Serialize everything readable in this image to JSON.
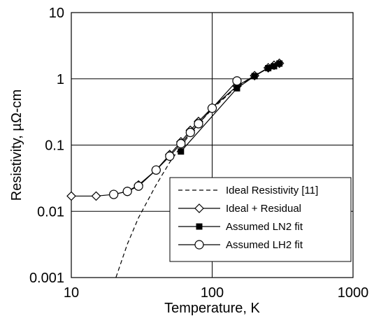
{
  "chart_data": {
    "type": "line",
    "xlabel": "Temperature, K",
    "ylabel": "Resistivity, µΩ-cm",
    "x_scale": "log",
    "y_scale": "log",
    "xlim": [
      10,
      1000
    ],
    "ylim": [
      0.001,
      10
    ],
    "x_ticks": [
      "10",
      "100",
      "1000"
    ],
    "y_ticks": [
      "0.001",
      "0.01",
      "0.1",
      "1",
      "10"
    ],
    "grid": true,
    "legend_position": "bottom-right",
    "series": [
      {
        "name": "Ideal Resistivity [11]",
        "style": "dashed",
        "marker": "none",
        "x": [
          20,
          25,
          30,
          40,
          50,
          60,
          70,
          80,
          100,
          150,
          200,
          250,
          300
        ],
        "y": [
          0.0008,
          0.0032,
          0.008,
          0.025,
          0.055,
          0.095,
          0.15,
          0.21,
          0.35,
          0.76,
          1.1,
          1.45,
          1.7
        ]
      },
      {
        "name": "Ideal + Residual",
        "style": "solid",
        "marker": "diamond",
        "x": [
          10,
          15,
          20,
          25,
          30,
          40,
          50,
          60,
          70,
          80,
          100,
          150,
          200,
          250,
          275,
          300
        ],
        "y": [
          0.017,
          0.017,
          0.018,
          0.02,
          0.025,
          0.042,
          0.072,
          0.112,
          0.167,
          0.227,
          0.367,
          0.777,
          1.117,
          1.467,
          1.6,
          1.717
        ]
      },
      {
        "name": "Assumed LN2 fit",
        "style": "solid",
        "marker": "square",
        "x": [
          60,
          150,
          200,
          250,
          275,
          300
        ],
        "y": [
          0.08,
          0.72,
          1.1,
          1.45,
          1.55,
          1.7
        ]
      },
      {
        "name": "Assumed LH2 fit",
        "style": "solid",
        "marker": "circle",
        "x": [
          20,
          25,
          30,
          40,
          50,
          60,
          70,
          80,
          100,
          150
        ],
        "y": [
          0.018,
          0.02,
          0.024,
          0.042,
          0.068,
          0.105,
          0.155,
          0.21,
          0.36,
          0.93
        ]
      }
    ]
  }
}
